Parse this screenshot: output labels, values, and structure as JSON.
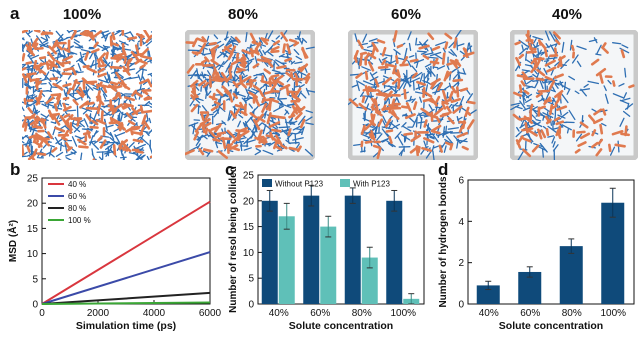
{
  "panel_a": {
    "letter": "a",
    "panels": [
      {
        "label": "100%",
        "density": 1.0,
        "frame": false
      },
      {
        "label": "80%",
        "density": 0.8,
        "frame": true
      },
      {
        "label": "60%",
        "density": 0.6,
        "frame": true
      },
      {
        "label": "40%",
        "density": 0.4,
        "frame": true
      }
    ],
    "colors": {
      "resol": "#e07a4f",
      "polymer": "#2f6fb3",
      "box": "#c9c9c9"
    }
  },
  "chart_data": [
    {
      "panel": "b",
      "type": "line",
      "xlabel": "Simulation time (ps)",
      "ylabel": "MSD (Å²)",
      "xlim": [
        0,
        6000
      ],
      "ylim": [
        0,
        25
      ],
      "xticks": [
        "0",
        "2000",
        "4000",
        "6000"
      ],
      "yticks": [
        "0",
        "5",
        "10",
        "15",
        "20",
        "25"
      ],
      "legend_position": "top-left",
      "series": [
        {
          "name": "40 %",
          "color": "#d9363e",
          "x": [
            0,
            6000
          ],
          "y": [
            0,
            20.3
          ]
        },
        {
          "name": "60 %",
          "color": "#3b4aa8",
          "x": [
            0,
            6000
          ],
          "y": [
            0,
            10.3
          ]
        },
        {
          "name": "80 %",
          "color": "#222222",
          "x": [
            0,
            6000
          ],
          "y": [
            0,
            2.2
          ]
        },
        {
          "name": "100 %",
          "color": "#3aa635",
          "x": [
            0,
            6000
          ],
          "y": [
            0,
            0.3
          ]
        }
      ]
    },
    {
      "panel": "c",
      "type": "bar",
      "xlabel": "Solute concentration",
      "ylabel": "Number of resol being collided",
      "ylim": [
        0,
        25
      ],
      "yticks": [
        "0",
        "5",
        "10",
        "15",
        "20",
        "25"
      ],
      "categories": [
        "40%",
        "60%",
        "80%",
        "100%"
      ],
      "legend_position": "top",
      "series": [
        {
          "name": "Without P123",
          "color": "#0f4a7a",
          "values": [
            20,
            21,
            21,
            20
          ],
          "errors": [
            2,
            2,
            1.5,
            2
          ]
        },
        {
          "name": "With P123",
          "color": "#5fc0b8",
          "values": [
            17,
            15,
            9,
            1
          ],
          "errors": [
            2.5,
            2,
            2,
            1
          ]
        }
      ]
    },
    {
      "panel": "d",
      "type": "bar",
      "xlabel": "Solute concentration",
      "ylabel": "Number of hydrogen bonds",
      "ylim": [
        0,
        6
      ],
      "yticks": [
        "0",
        "2",
        "4",
        "6"
      ],
      "categories": [
        "40%",
        "60%",
        "80%",
        "100%"
      ],
      "series": [
        {
          "name": "",
          "color": "#0f4a7a",
          "values": [
            0.9,
            1.55,
            2.8,
            4.9
          ],
          "errors": [
            0.2,
            0.25,
            0.35,
            0.7
          ]
        }
      ]
    }
  ]
}
